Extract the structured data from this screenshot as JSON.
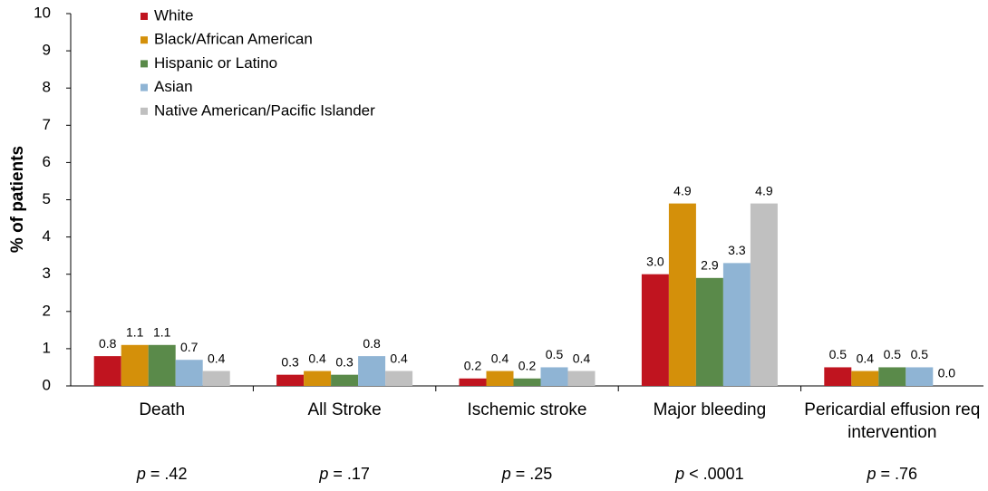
{
  "chart_data": {
    "type": "bar",
    "y_axis_label": "% of patients",
    "categories": [
      "Death",
      "All Stroke",
      "Ischemic stroke",
      "Major bleeding",
      "Pericardial effusion req intervention"
    ],
    "annotations": [
      "p = .42",
      "p = .17",
      "p = .25",
      "p < .0001",
      "p = .76"
    ],
    "series": [
      {
        "name": "White",
        "color": "#c0141f",
        "values": [
          0.8,
          0.3,
          0.2,
          3.0,
          0.5
        ],
        "value_labels": [
          "0.8",
          "0.3",
          "0.2",
          "3.0",
          "0.5"
        ]
      },
      {
        "name": "Black/African American",
        "color": "#d4900a",
        "values": [
          1.1,
          0.4,
          0.4,
          4.9,
          0.4
        ],
        "value_labels": [
          "1.1",
          "0.4",
          "0.4",
          "4.9",
          "0.4"
        ]
      },
      {
        "name": "Hispanic or Latino",
        "color": "#5a8a4a",
        "values": [
          1.1,
          0.3,
          0.2,
          2.9,
          0.5
        ],
        "value_labels": [
          "1.1",
          "0.3",
          "0.2",
          "2.9",
          "0.5"
        ]
      },
      {
        "name": "Asian",
        "color": "#8fb4d4",
        "values": [
          0.7,
          0.8,
          0.5,
          3.3,
          0.5
        ],
        "value_labels": [
          "0.7",
          "0.8",
          "0.5",
          "3.3",
          "0.5"
        ]
      },
      {
        "name": "Native American/Pacific Islander",
        "color": "#c0c0c0",
        "values": [
          0.4,
          0.4,
          0.4,
          4.9,
          0.0
        ],
        "value_labels": [
          "0.4",
          "0.4",
          "0.4",
          "4.9",
          "0.0"
        ]
      }
    ],
    "ylim": [
      0,
      10
    ],
    "yticks": [
      0,
      1,
      2,
      3,
      4,
      5,
      6,
      7,
      8,
      9,
      10
    ],
    "grid": false,
    "legend": "top-left"
  }
}
